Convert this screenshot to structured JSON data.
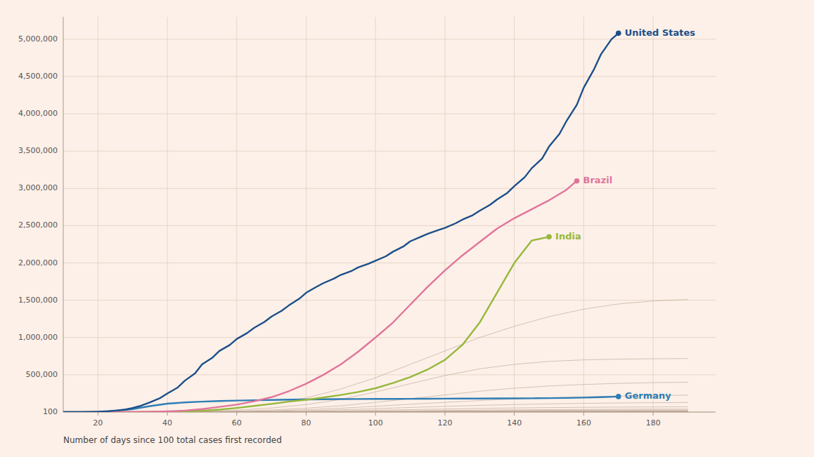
{
  "chart_data": {
    "type": "line",
    "x_label": "Number of days since 100 total cases first recorded",
    "xlim": [
      10,
      198
    ],
    "ylim": [
      100,
      5300000
    ],
    "xticks": [
      20,
      40,
      60,
      80,
      100,
      120,
      140,
      160,
      180
    ],
    "yticks": [
      100,
      {
        "value": 500000,
        "label": "500,000"
      },
      {
        "value": 1000000,
        "label": "1,000,000"
      },
      {
        "value": 1500000,
        "label": "1,500,000"
      },
      {
        "value": 2000000,
        "label": "2,000,000"
      },
      {
        "value": 2500000,
        "label": "2,500,000"
      },
      {
        "value": 3000000,
        "label": "3,000,000"
      },
      {
        "value": 3500000,
        "label": "3,500,000"
      },
      {
        "value": 4000000,
        "label": "4,000,000"
      },
      {
        "value": 4500000,
        "label": "4,500,000"
      },
      {
        "value": 5000000,
        "label": "5,000,000"
      }
    ],
    "grid": true,
    "series": [
      {
        "color": "#b5a090",
        "x": [
          10,
          20,
          30,
          40,
          50,
          60,
          70,
          80,
          90,
          100,
          110,
          120,
          130,
          140,
          150,
          160,
          170,
          180,
          190
        ],
        "values": [
          100,
          300,
          1500,
          7000,
          22000,
          55000,
          110000,
          190000,
          310000,
          460000,
          640000,
          820000,
          1000000,
          1150000,
          1280000,
          1380000,
          1450000,
          1490000,
          1510000
        ]
      },
      {
        "color": "#b5a090",
        "x": [
          10,
          20,
          30,
          40,
          50,
          60,
          70,
          80,
          90,
          100,
          110,
          120,
          130,
          140,
          150,
          160,
          170,
          180,
          190
        ],
        "values": [
          100,
          200,
          800,
          3500,
          10000,
          26000,
          55000,
          100000,
          170000,
          270000,
          380000,
          490000,
          580000,
          640000,
          680000,
          700000,
          710000,
          715000,
          718000
        ]
      },
      {
        "color": "#b5a090",
        "x": [
          10,
          20,
          30,
          40,
          50,
          60,
          70,
          80,
          90,
          100,
          110,
          120,
          130,
          140,
          150,
          160,
          170,
          180,
          190
        ],
        "values": [
          100,
          150,
          500,
          2000,
          5500,
          13000,
          28000,
          52000,
          85000,
          130000,
          180000,
          230000,
          280000,
          320000,
          350000,
          370000,
          385000,
          395000,
          400000
        ]
      },
      {
        "color": "#b5a090",
        "x": [
          10,
          20,
          30,
          40,
          50,
          60,
          70,
          80,
          90,
          100,
          110,
          120,
          130,
          140,
          150,
          160,
          170,
          180,
          190
        ],
        "values": [
          100,
          120,
          350,
          1200,
          3500,
          8000,
          17000,
          32000,
          52000,
          78000,
          105000,
          130000,
          155000,
          175000,
          192000,
          205000,
          215000,
          222000,
          227000
        ]
      },
      {
        "color": "#b5a090",
        "x": [
          10,
          20,
          30,
          40,
          50,
          60,
          70,
          80,
          90,
          100,
          110,
          120,
          130,
          140,
          150,
          160,
          170,
          180,
          190
        ],
        "values": [
          100,
          110,
          250,
          700,
          2000,
          4800,
          10000,
          19000,
          31000,
          46000,
          62000,
          77000,
          90000,
          101000,
          110000,
          117000,
          122000,
          126000,
          129000
        ]
      },
      {
        "color": "#b5a090",
        "x": [
          10,
          20,
          30,
          40,
          50,
          60,
          70,
          80,
          90,
          100,
          110,
          120,
          130,
          140,
          150,
          160,
          170,
          180,
          190
        ],
        "values": [
          100,
          105,
          180,
          450,
          1200,
          2800,
          5800,
          10500,
          17000,
          25000,
          33000,
          41000,
          49000,
          55000,
          60000,
          64000,
          67000,
          69000,
          71000
        ]
      },
      {
        "color": "#b5a090",
        "x": [
          10,
          20,
          30,
          40,
          50,
          60,
          70,
          80,
          90,
          100,
          110,
          120,
          130,
          140,
          150,
          160,
          170,
          180,
          190
        ],
        "values": [
          100,
          103,
          140,
          280,
          700,
          1600,
          3200,
          5700,
          9000,
          13000,
          17500,
          22000,
          26000,
          30000,
          33500,
          36000,
          38000,
          39500,
          40500
        ]
      },
      {
        "color": "#b5a090",
        "x": [
          10,
          20,
          30,
          40,
          50,
          60,
          70,
          80,
          90,
          100,
          110,
          120,
          130,
          140,
          150,
          160,
          170,
          180,
          190
        ],
        "values": [
          100,
          102,
          120,
          200,
          450,
          1000,
          2000,
          3500,
          5500,
          8000,
          11000,
          14000,
          17000,
          20000,
          22500,
          24500,
          26000,
          27000,
          27800
        ]
      },
      {
        "color": "#b5a090",
        "x": [
          10,
          20,
          30,
          40,
          50,
          60,
          70,
          80,
          90,
          100,
          110,
          120,
          130,
          140,
          150,
          160,
          170,
          180,
          190
        ],
        "values": [
          100,
          101,
          112,
          150,
          290,
          600,
          1200,
          2100,
          3300,
          4800,
          6600,
          8500,
          10500,
          12500,
          14200,
          15600,
          16700,
          17500,
          18000
        ]
      },
      {
        "color": "#b5a090",
        "x": [
          10,
          20,
          30,
          40,
          50,
          60,
          70,
          80,
          90,
          100,
          110,
          120,
          130,
          140,
          150,
          160,
          170,
          180,
          190
        ],
        "values": [
          100,
          100,
          108,
          130,
          200,
          380,
          750,
          1300,
          2100,
          3100,
          4300,
          5600,
          7000,
          8400,
          9700,
          10800,
          11700,
          12400,
          12900
        ]
      },
      {
        "color": "#b5a090",
        "x": [
          10,
          20,
          30,
          40,
          50,
          60,
          70,
          80,
          90,
          100,
          110,
          120,
          130,
          140,
          150,
          160,
          170,
          180,
          190
        ],
        "values": [
          100,
          100,
          105,
          115,
          145,
          240,
          460,
          800,
          1300,
          2000,
          2800,
          3700,
          4700,
          5700,
          6700,
          7600,
          8400,
          9000,
          9500
        ]
      },
      {
        "color": "#b5a090",
        "x": [
          10,
          20,
          30,
          40,
          50,
          60,
          70,
          80,
          90,
          100,
          110,
          120,
          130,
          140,
          150,
          160,
          170,
          180,
          190
        ],
        "values": [
          100,
          100,
          102,
          110,
          125,
          165,
          280,
          480,
          780,
          1200,
          1700,
          2300,
          3000,
          3700,
          4400,
          5100,
          5700,
          6200,
          6600
        ]
      },
      {
        "color": "#b5a090",
        "x": [
          10,
          20,
          30,
          40,
          50,
          60,
          70,
          80,
          90,
          100,
          110,
          120,
          130,
          140,
          150,
          160,
          170,
          180,
          190
        ],
        "values": [
          100,
          100,
          101,
          105,
          114,
          130,
          180,
          280,
          440,
          680,
          980,
          1350,
          1780,
          2250,
          2760,
          3280,
          3800,
          4300,
          4750
        ]
      },
      {
        "color": "#b5a090",
        "x": [
          10,
          20,
          30,
          40,
          50,
          60,
          70,
          80,
          90,
          100,
          110,
          120,
          130,
          140,
          150,
          160,
          170,
          180,
          190
        ],
        "values": [
          100,
          100,
          100,
          102,
          108,
          118,
          145,
          200,
          310,
          470,
          680,
          940,
          1250,
          1600,
          2000,
          2440,
          2900,
          3380,
          3870
        ]
      },
      {
        "color": "#b5a090",
        "x": [
          10,
          20,
          30,
          40,
          50,
          60,
          70,
          80,
          90,
          100,
          110,
          120,
          130,
          140,
          150,
          160,
          170,
          180,
          190
        ],
        "values": [
          100,
          100,
          100,
          101,
          104,
          110,
          124,
          155,
          210,
          310,
          440,
          610,
          820,
          1070,
          1360,
          1700,
          2070,
          2480,
          2930
        ]
      },
      {
        "name": "Germany",
        "color": "#2e7db5",
        "x": [
          10,
          15,
          20,
          25,
          30,
          35,
          40,
          45,
          50,
          55,
          60,
          65,
          70,
          75,
          80,
          85,
          90,
          95,
          100,
          105,
          110,
          115,
          120,
          125,
          130,
          135,
          140,
          145,
          150,
          155,
          160,
          165,
          170
        ],
        "values": [
          100,
          500,
          3000,
          14000,
          40000,
          80000,
          113000,
          130000,
          140000,
          148000,
          154000,
          159000,
          163000,
          167000,
          170000,
          172000,
          174000,
          175000,
          176000,
          177000,
          178000,
          179000,
          180000,
          181000,
          182000,
          183000,
          184000,
          185000,
          187000,
          190000,
          194000,
          200000,
          208000
        ]
      },
      {
        "name": "India",
        "color": "#96b83c",
        "x": [
          10,
          15,
          20,
          25,
          30,
          35,
          40,
          45,
          50,
          55,
          60,
          65,
          70,
          75,
          80,
          85,
          90,
          95,
          100,
          105,
          110,
          115,
          120,
          125,
          130,
          135,
          140,
          145,
          150
        ],
        "values": [
          100,
          130,
          200,
          400,
          800,
          2000,
          4500,
          9000,
          18000,
          33000,
          55000,
          82000,
          110000,
          140000,
          165000,
          195000,
          230000,
          270000,
          320000,
          390000,
          470000,
          570000,
          700000,
          900000,
          1200000,
          1600000,
          2000000,
          2300000,
          2350000
        ]
      },
      {
        "name": "Brazil",
        "color": "#e0759a",
        "x": [
          10,
          15,
          20,
          25,
          30,
          35,
          40,
          45,
          50,
          55,
          60,
          65,
          70,
          75,
          80,
          85,
          90,
          95,
          100,
          105,
          110,
          115,
          120,
          125,
          130,
          135,
          140,
          145,
          150,
          155,
          158
        ],
        "values": [
          100,
          150,
          300,
          800,
          2000,
          5000,
          10000,
          20000,
          40000,
          70000,
          100000,
          145000,
          200000,
          280000,
          380000,
          500000,
          640000,
          810000,
          1000000,
          1200000,
          1440000,
          1680000,
          1900000,
          2100000,
          2280000,
          2460000,
          2600000,
          2720000,
          2840000,
          2980000,
          3100000
        ]
      },
      {
        "name": "United States",
        "color": "#1b4f8a",
        "x": [
          10,
          12,
          15,
          18,
          20,
          23,
          25,
          28,
          30,
          32,
          35,
          38,
          40,
          43,
          45,
          48,
          50,
          53,
          55,
          58,
          60,
          63,
          65,
          68,
          70,
          73,
          75,
          78,
          80,
          83,
          85,
          88,
          90,
          93,
          95,
          98,
          100,
          103,
          105,
          108,
          110,
          113,
          115,
          118,
          120,
          123,
          125,
          128,
          130,
          133,
          135,
          138,
          140,
          143,
          145,
          148,
          150,
          153,
          155,
          158,
          160,
          163,
          165,
          168,
          170
        ],
        "values": [
          100,
          200,
          800,
          3000,
          6000,
          12000,
          20000,
          35000,
          55000,
          80000,
          130000,
          190000,
          250000,
          330000,
          420000,
          520000,
          640000,
          730000,
          820000,
          900000,
          980000,
          1060000,
          1130000,
          1210000,
          1280000,
          1360000,
          1430000,
          1520000,
          1600000,
          1680000,
          1730000,
          1790000,
          1840000,
          1890000,
          1940000,
          1990000,
          2030000,
          2090000,
          2150000,
          2220000,
          2290000,
          2350000,
          2390000,
          2440000,
          2470000,
          2530000,
          2580000,
          2640000,
          2700000,
          2780000,
          2850000,
          2940000,
          3030000,
          3150000,
          3270000,
          3400000,
          3560000,
          3730000,
          3900000,
          4120000,
          4350000,
          4600000,
          4800000,
          5000000,
          5080000
        ]
      }
    ]
  }
}
